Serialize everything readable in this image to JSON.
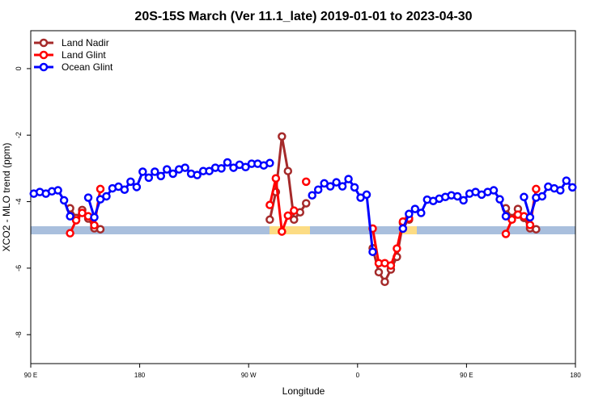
{
  "chart_data": {
    "type": "line",
    "title": "20S-15S March (Ver 11.1_late)   2019-01-01 to 2023-04-30",
    "x_label": "Longitude",
    "y_label": "XCO2 - MLO trend (ppm)",
    "x": [
      92.5,
      97.5,
      102.5,
      107.5,
      112.5,
      117.5,
      122.5,
      127.5,
      132.5,
      137.5,
      142.5,
      147.5,
      152.5,
      157.5,
      162.5,
      167.5,
      172.5,
      177.5,
      182.5,
      187.5,
      192.5,
      197.5,
      202.5,
      207.5,
      212.5,
      217.5,
      222.5,
      227.5,
      232.5,
      237.5,
      242.5,
      247.5,
      252.5,
      257.5,
      262.5,
      267.5,
      272.5,
      277.5,
      282.5,
      287.5,
      292.5,
      297.5,
      302.5,
      307.5,
      312.5,
      317.5,
      322.5,
      327.5,
      332.5,
      337.5,
      342.5,
      347.5,
      352.5,
      357.5,
      362.5,
      367.5,
      372.5,
      377.5,
      382.5,
      387.5,
      392.5,
      397.5,
      402.5,
      407.5,
      412.5,
      417.5,
      422.5,
      427.5,
      432.5,
      437.5,
      442.5,
      447.5,
      452.5,
      457.5,
      462.5,
      467.5,
      472.5,
      477.5,
      482.5,
      487.5,
      492.5,
      497.5,
      502.5,
      507.5,
      512.5,
      517.5,
      522.5,
      527.5,
      532.5,
      537.5
    ],
    "series": [
      {
        "name": "Land Nadir",
        "color": "#a52a2a",
        "values": [
          null,
          null,
          null,
          null,
          null,
          null,
          -4.2,
          -4.49,
          -4.25,
          -4.51,
          -4.8,
          -4.83,
          null,
          null,
          null,
          null,
          null,
          null,
          null,
          null,
          null,
          null,
          null,
          null,
          null,
          null,
          null,
          null,
          null,
          null,
          null,
          null,
          null,
          null,
          null,
          null,
          null,
          null,
          null,
          -4.54,
          -3.71,
          -2.04,
          -3.08,
          -4.54,
          -4.32,
          -4.05,
          null,
          null,
          null,
          null,
          null,
          null,
          null,
          null,
          null,
          null,
          -5.4,
          -6.12,
          -6.41,
          -6.04,
          -5.66,
          -4.64,
          -4.54,
          null,
          null,
          null,
          null,
          null,
          null,
          null,
          null,
          null,
          null,
          null,
          null,
          null,
          null,
          null,
          -4.2,
          -4.49,
          -4.22,
          -4.49,
          -4.8,
          -4.83,
          null,
          null,
          null,
          null,
          null,
          null
        ]
      },
      {
        "name": "Land Glint",
        "color": "#ff0000",
        "values": [
          null,
          null,
          null,
          null,
          null,
          null,
          -4.95,
          -4.56,
          -4.34,
          -4.44,
          -4.71,
          -3.62,
          null,
          null,
          null,
          null,
          null,
          null,
          null,
          null,
          null,
          null,
          null,
          null,
          null,
          null,
          null,
          null,
          null,
          null,
          null,
          null,
          null,
          null,
          null,
          null,
          null,
          null,
          null,
          -4.1,
          -3.3,
          -4.9,
          -4.42,
          -4.27,
          null,
          -3.4,
          null,
          null,
          null,
          null,
          null,
          null,
          null,
          null,
          null,
          null,
          -4.81,
          -5.85,
          -5.85,
          -5.92,
          -5.41,
          -4.6,
          -4.5,
          null,
          null,
          null,
          null,
          null,
          null,
          null,
          null,
          null,
          null,
          null,
          null,
          null,
          null,
          null,
          -4.97,
          -4.54,
          -4.39,
          -4.44,
          -4.7,
          -3.62,
          null,
          null,
          null,
          null,
          null,
          null
        ]
      },
      {
        "name": "Ocean Glint",
        "color": "#0000ff",
        "values": [
          -3.76,
          -3.71,
          -3.76,
          -3.69,
          -3.66,
          -3.96,
          -4.44,
          null,
          null,
          -3.88,
          -4.47,
          -3.93,
          -3.84,
          -3.6,
          -3.55,
          -3.64,
          -3.4,
          -3.56,
          -3.1,
          -3.28,
          -3.1,
          -3.23,
          -3.03,
          -3.16,
          -3.03,
          -2.98,
          -3.16,
          -3.2,
          -3.08,
          -3.08,
          -2.98,
          -3.0,
          -2.82,
          -2.98,
          -2.89,
          -2.96,
          -2.86,
          -2.86,
          -2.91,
          -2.84,
          null,
          null,
          null,
          null,
          null,
          null,
          -3.81,
          -3.64,
          -3.45,
          -3.54,
          -3.42,
          -3.54,
          -3.32,
          -3.57,
          -3.88,
          -3.79,
          -5.51,
          null,
          null,
          null,
          null,
          -4.81,
          -4.37,
          -4.22,
          -4.34,
          -3.94,
          -3.98,
          -3.91,
          -3.86,
          -3.81,
          -3.84,
          -3.96,
          -3.76,
          -3.71,
          -3.79,
          -3.71,
          -3.66,
          -3.93,
          -4.44,
          null,
          null,
          -3.86,
          -4.47,
          -3.88,
          -3.84,
          -3.55,
          -3.6,
          -3.66,
          -3.37,
          -3.57
        ]
      }
    ],
    "xlim": [
      90,
      540
    ],
    "xticks": [
      {
        "value": 90,
        "label": "90 E"
      },
      180,
      {
        "value": 270,
        "label": "90 W"
      },
      {
        "value": 360,
        "label": "0"
      },
      {
        "value": 450,
        "label": "90 E"
      },
      {
        "value": 540,
        "label": "180"
      }
    ],
    "ylim": [
      -8.87,
      1.14
    ],
    "yticks": [
      0,
      -2,
      -4,
      -6,
      -8
    ],
    "legend": "top-left"
  }
}
